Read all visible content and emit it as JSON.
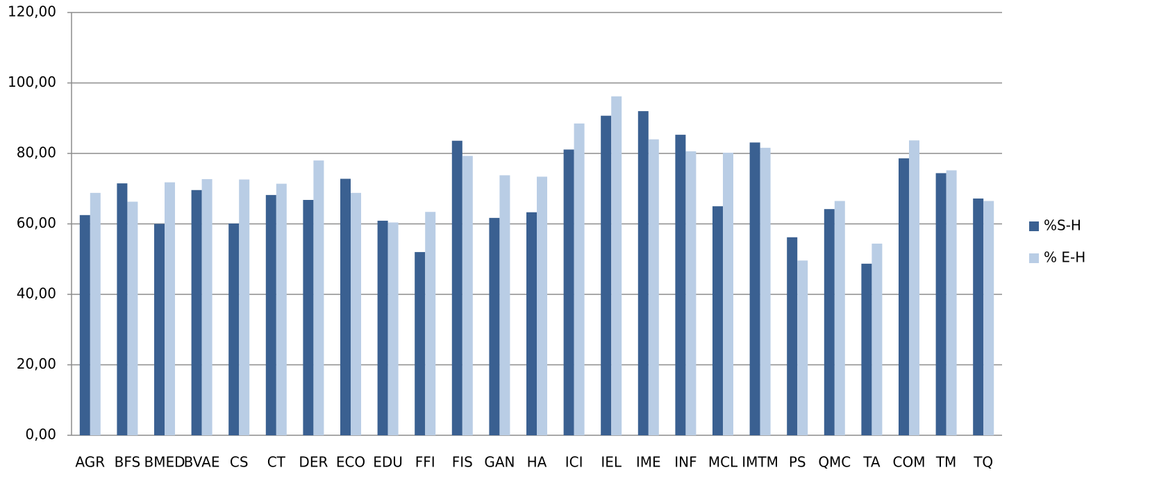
{
  "chart_data": {
    "type": "bar",
    "categories": [
      "AGR",
      "BFS",
      "BMED",
      "BVAE",
      "CS",
      "CT",
      "DER",
      "ECO",
      "EDU",
      "FFI",
      "FIS",
      "GAN",
      "HA",
      "ICI",
      "IEL",
      "IME",
      "INF",
      "MCL",
      "IMTM",
      "PS",
      "QMC",
      "TA",
      "COM",
      "TM",
      "TQ"
    ],
    "series": [
      {
        "name": "%S-H",
        "color": "#3a6091",
        "values": [
          62.5,
          71.5,
          60.0,
          69.6,
          60.1,
          68.2,
          66.8,
          72.8,
          60.9,
          52.0,
          83.6,
          61.7,
          63.3,
          81.1,
          90.7,
          92.0,
          85.3,
          65.0,
          83.1,
          56.2,
          64.2,
          48.7,
          78.6,
          74.4,
          67.2
        ]
      },
      {
        "name": "% E-H",
        "color": "#b9cde5",
        "values": [
          68.8,
          66.3,
          71.8,
          72.7,
          72.6,
          71.4,
          78.0,
          68.8,
          60.4,
          63.4,
          79.3,
          73.8,
          73.4,
          88.5,
          96.2,
          84.0,
          80.6,
          80.2,
          81.6,
          49.6,
          66.5,
          54.4,
          83.7,
          75.2,
          66.5
        ]
      }
    ],
    "ylim": [
      0,
      120
    ],
    "yticks": [
      {
        "value": 0,
        "label": "0,00"
      },
      {
        "value": 20,
        "label": "20,00"
      },
      {
        "value": 40,
        "label": "40,00"
      },
      {
        "value": 60,
        "label": "60,00"
      },
      {
        "value": 80,
        "label": "80,00"
      },
      {
        "value": 100,
        "label": "100,00"
      },
      {
        "value": 120,
        "label": "120,00"
      }
    ],
    "grid": true,
    "legend": "right"
  }
}
